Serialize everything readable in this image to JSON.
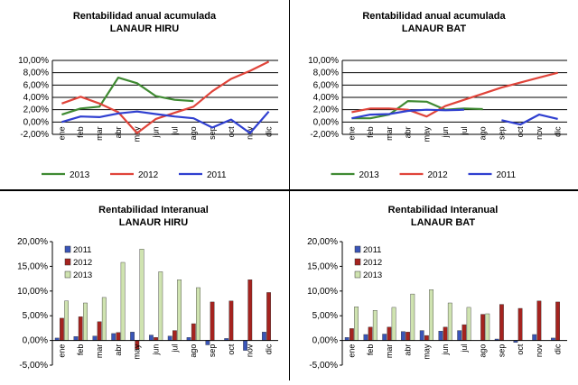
{
  "chart_data": [
    {
      "type": "line",
      "title": "Rentabilidad anual acumulada",
      "subtitle": "LANAUR HIRU",
      "categories": [
        "ene",
        "feb",
        "mar",
        "abr",
        "may",
        "jun",
        "jul",
        "ago",
        "sep",
        "oct",
        "nov",
        "dic"
      ],
      "ylim": [
        -2,
        10
      ],
      "yticks": [
        "-2,00%",
        "0,00%",
        "2,00%",
        "4,00%",
        "6,00%",
        "8,00%",
        "10,00%"
      ],
      "grid": true,
      "legend_position": "bottom",
      "series": [
        {
          "name": "2013",
          "color": "#3f8a32",
          "values": [
            1.2,
            2.2,
            2.5,
            7.2,
            6.3,
            4.2,
            3.6,
            3.4,
            null,
            null,
            null,
            null
          ]
        },
        {
          "name": "2012",
          "color": "#e0443a",
          "values": [
            3.0,
            4.1,
            3.0,
            1.6,
            -1.8,
            0.5,
            1.5,
            2.5,
            5.0,
            7.0,
            8.3,
            9.8
          ]
        },
        {
          "name": "2011",
          "color": "#2f3fd0",
          "values": [
            0.0,
            0.9,
            0.8,
            1.4,
            1.7,
            1.3,
            0.9,
            0.6,
            -0.9,
            0.4,
            -1.8,
            1.7
          ]
        }
      ]
    },
    {
      "type": "line",
      "title": "Rentabilidad anual acumulada",
      "subtitle": "LANAUR BAT",
      "categories": [
        "ene",
        "feb",
        "mar",
        "abr",
        "may",
        "jun",
        "jul",
        "ago",
        "sep",
        "oct",
        "nov",
        "dic"
      ],
      "ylim": [
        -2,
        10
      ],
      "yticks": [
        "-2,00%",
        "0,00%",
        "2,00%",
        "4,00%",
        "6,00%",
        "8,00%",
        "10,00%"
      ],
      "grid": true,
      "legend_position": "bottom",
      "series": [
        {
          "name": "2013",
          "color": "#3f8a32",
          "values": [
            0.6,
            0.6,
            1.2,
            3.4,
            3.3,
            2.0,
            2.2,
            2.1,
            null,
            null,
            null,
            null
          ]
        },
        {
          "name": "2012",
          "color": "#e0443a",
          "values": [
            1.6,
            2.2,
            2.2,
            2.0,
            0.9,
            2.6,
            3.6,
            4.6,
            5.6,
            6.4,
            7.2,
            8.0
          ]
        },
        {
          "name": "2011",
          "color": "#2f3fd0",
          "values": [
            0.6,
            1.2,
            1.3,
            1.8,
            2.0,
            1.9,
            2.0,
            null,
            0.3,
            -0.4,
            1.2,
            0.5
          ]
        }
      ]
    },
    {
      "type": "bar",
      "title": "Rentabilidad Interanual",
      "subtitle": "LANAUR HIRU",
      "categories": [
        "ene",
        "feb",
        "mar",
        "abr",
        "may",
        "jun",
        "jul",
        "ago",
        "sep",
        "oct",
        "nov",
        "dic"
      ],
      "ylim": [
        -5,
        20
      ],
      "yticks": [
        "-5,00%",
        "0,00%",
        "5,00%",
        "10,00%",
        "15,00%",
        "20,00%"
      ],
      "grid": false,
      "legend_position": "top-left",
      "series": [
        {
          "name": "2011",
          "color": "#3a55b8",
          "values": [
            0.5,
            0.8,
            0.9,
            1.4,
            1.7,
            1.1,
            0.9,
            0.6,
            -0.9,
            0.4,
            -2.0,
            1.7
          ]
        },
        {
          "name": "2012",
          "color": "#a5231f",
          "values": [
            4.5,
            4.8,
            3.8,
            1.6,
            -1.8,
            0.6,
            2.0,
            3.4,
            7.8,
            8.0,
            12.3,
            9.7
          ]
        },
        {
          "name": "2013",
          "color": "#cfe3b0",
          "values": [
            8.0,
            7.6,
            8.7,
            15.8,
            18.5,
            13.9,
            12.3,
            10.7,
            null,
            null,
            null,
            null
          ]
        }
      ]
    },
    {
      "type": "bar",
      "title": "Rentabilidad Interanual",
      "subtitle": "LANAUR BAT",
      "categories": [
        "ene",
        "feb",
        "mar",
        "abr",
        "may",
        "jun",
        "jul",
        "ago",
        "sep",
        "oct",
        "nov",
        "dic"
      ],
      "ylim": [
        -5,
        20
      ],
      "yticks": [
        "-5,00%",
        "0,00%",
        "5,00%",
        "10,00%",
        "15,00%",
        "20,00%"
      ],
      "grid": false,
      "legend_position": "top-left",
      "series": [
        {
          "name": "2011",
          "color": "#3a55b8",
          "values": [
            0.6,
            1.2,
            1.3,
            1.8,
            2.0,
            1.9,
            2.0,
            null,
            0.3,
            -0.4,
            1.2,
            0.5
          ]
        },
        {
          "name": "2012",
          "color": "#a5231f",
          "values": [
            2.4,
            2.7,
            2.7,
            1.7,
            1.0,
            2.7,
            3.2,
            5.3,
            7.3,
            6.5,
            8.0,
            7.8
          ]
        },
        {
          "name": "2013",
          "color": "#cfe3b0",
          "values": [
            6.8,
            6.1,
            6.7,
            9.4,
            10.3,
            7.6,
            6.7,
            5.4,
            null,
            null,
            null,
            null
          ]
        }
      ]
    }
  ]
}
